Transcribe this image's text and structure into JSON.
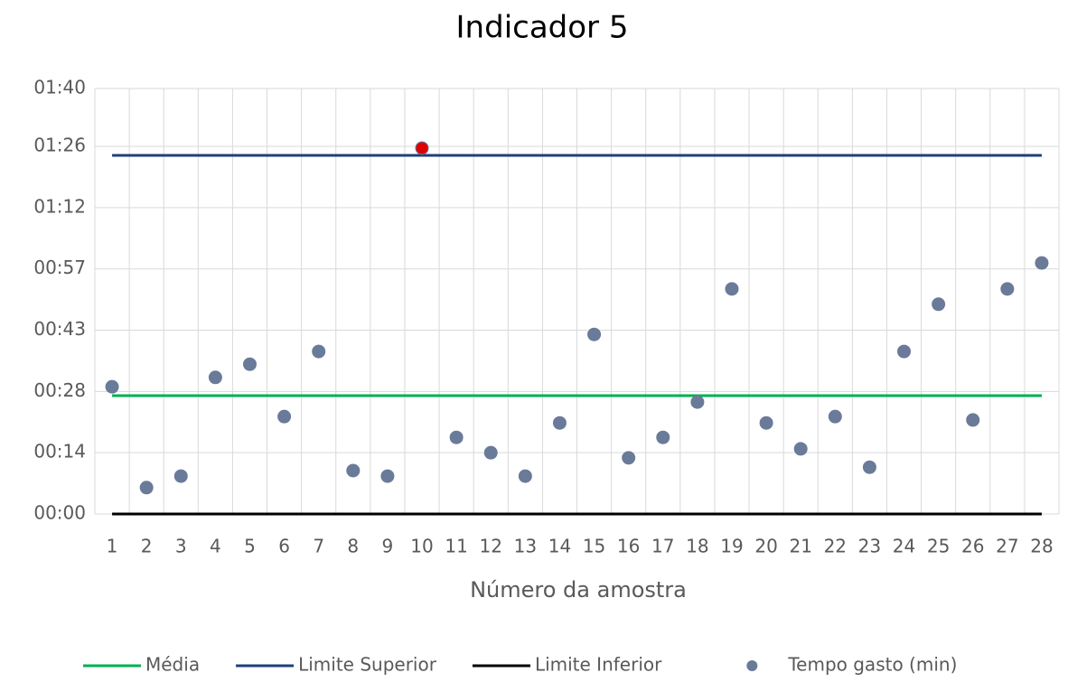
{
  "chart_data": {
    "type": "combo",
    "title": "Indicador 5",
    "x_label": "Número da amostra",
    "categories": [
      "1",
      "2",
      "3",
      "4",
      "5",
      "6",
      "7",
      "8",
      "9",
      "10",
      "11",
      "12",
      "13",
      "14",
      "15",
      "16",
      "17",
      "18",
      "19",
      "20",
      "21",
      "22",
      "23",
      "24",
      "25",
      "26",
      "27",
      "28"
    ],
    "ylim": [
      0,
      100
    ],
    "yticks": [
      {
        "value": 0,
        "label": "00:00"
      },
      {
        "value": 14.4,
        "label": "00:14"
      },
      {
        "value": 28.8,
        "label": "00:28"
      },
      {
        "value": 43.2,
        "label": "00:43"
      },
      {
        "value": 57.6,
        "label": "00:57"
      },
      {
        "value": 72,
        "label": "01:12"
      },
      {
        "value": 86.4,
        "label": "01:26"
      },
      {
        "value": 100,
        "label": "01:40"
      }
    ],
    "grid": true,
    "legend": "bottom",
    "series": [
      {
        "name": "Média",
        "type": "line",
        "color": "#00b050",
        "values": [
          27.8,
          27.8,
          27.8,
          27.8,
          27.8,
          27.8,
          27.8,
          27.8,
          27.8,
          27.8,
          27.8,
          27.8,
          27.8,
          27.8,
          27.8,
          27.8,
          27.8,
          27.8,
          27.8,
          27.8,
          27.8,
          27.8,
          27.8,
          27.8,
          27.8,
          27.8,
          27.8,
          27.8
        ]
      },
      {
        "name": "Limite Superior",
        "type": "line",
        "color": "#1f3f7a",
        "values": [
          84.3,
          84.3,
          84.3,
          84.3,
          84.3,
          84.3,
          84.3,
          84.3,
          84.3,
          84.3,
          84.3,
          84.3,
          84.3,
          84.3,
          84.3,
          84.3,
          84.3,
          84.3,
          84.3,
          84.3,
          84.3,
          84.3,
          84.3,
          84.3,
          84.3,
          84.3,
          84.3,
          84.3
        ]
      },
      {
        "name": "Limite Inferior",
        "type": "line",
        "color": "#000000",
        "values": [
          0,
          0,
          0,
          0,
          0,
          0,
          0,
          0,
          0,
          0,
          0,
          0,
          0,
          0,
          0,
          0,
          0,
          0,
          0,
          0,
          0,
          0,
          0,
          0,
          0,
          0,
          0,
          0
        ]
      },
      {
        "name": "Tempo gasto (min)",
        "type": "scatter",
        "color": "#6a7a99",
        "values": [
          29.9,
          6.2,
          8.9,
          32.1,
          35.2,
          22.9,
          38.2,
          10.2,
          8.9,
          86.0,
          18.0,
          14.4,
          8.9,
          21.4,
          42.2,
          13.2,
          18.0,
          26.3,
          52.9,
          21.4,
          15.3,
          22.9,
          11.0,
          38.2,
          49.3,
          22.1,
          52.9,
          59.0
        ],
        "marker_colors": [
          "#6a7a99",
          "#6a7a99",
          "#6a7a99",
          "#6a7a99",
          "#6a7a99",
          "#6a7a99",
          "#6a7a99",
          "#6a7a99",
          "#6a7a99",
          "#e00000",
          "#6a7a99",
          "#6a7a99",
          "#6a7a99",
          "#6a7a99",
          "#6a7a99",
          "#6a7a99",
          "#6a7a99",
          "#6a7a99",
          "#6a7a99",
          "#6a7a99",
          "#6a7a99",
          "#6a7a99",
          "#6a7a99",
          "#6a7a99",
          "#6a7a99",
          "#6a7a99",
          "#6a7a99",
          "#6a7a99"
        ]
      }
    ]
  }
}
